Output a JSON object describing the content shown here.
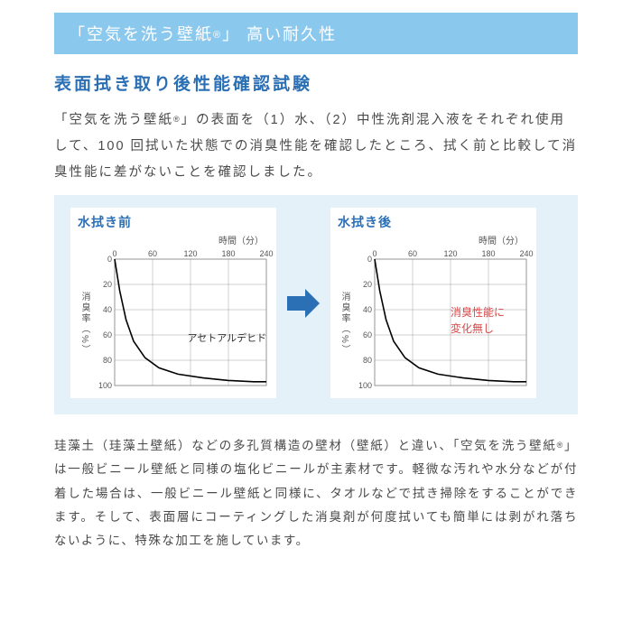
{
  "banner": {
    "prefix": "「空気を洗う壁紙",
    "reg": "®",
    "suffix": "」 高い耐久性"
  },
  "section_title": "表面拭き取り後性能確認試験",
  "intro": {
    "p1a": "「空気を洗う壁紙",
    "p1reg": "®",
    "p1b": "」の表面を（1）水、（2）中性洗剤混入液をそれぞれ使用して、100 回拭いた状態での消臭性能を確認したところ、拭く前と比較して消臭性能に差がないことを確認しました。"
  },
  "chart_before": {
    "title": "水拭き前",
    "xlabel": "時間（分）",
    "ylabel": "消臭率（%）",
    "xlim": [
      0,
      240
    ],
    "ylim_top": 0,
    "ylim_bottom": 100,
    "xticks": [
      0,
      60,
      120,
      180,
      240
    ],
    "yticks": [
      0,
      20,
      40,
      60,
      80,
      100
    ],
    "curve": [
      [
        0,
        0
      ],
      [
        8,
        25
      ],
      [
        18,
        48
      ],
      [
        30,
        65
      ],
      [
        48,
        78
      ],
      [
        70,
        86
      ],
      [
        100,
        91
      ],
      [
        140,
        94
      ],
      [
        180,
        96
      ],
      [
        220,
        97
      ],
      [
        240,
        97
      ]
    ],
    "annotation": "アセトアルデヒド",
    "annotation_color": "#333333",
    "curve_color": "#000000",
    "axis_color": "#888888",
    "grid_color": "#888888",
    "tick_fontsize": 9,
    "bg": "#ffffff"
  },
  "chart_after": {
    "title": "水拭き後",
    "xlabel": "時間（分）",
    "ylabel": "消臭率（%）",
    "xlim": [
      0,
      240
    ],
    "ylim_top": 0,
    "ylim_bottom": 100,
    "xticks": [
      0,
      60,
      120,
      180,
      240
    ],
    "yticks": [
      0,
      20,
      40,
      60,
      80,
      100
    ],
    "curve": [
      [
        0,
        0
      ],
      [
        8,
        25
      ],
      [
        18,
        48
      ],
      [
        30,
        65
      ],
      [
        48,
        78
      ],
      [
        70,
        86
      ],
      [
        100,
        91
      ],
      [
        140,
        94
      ],
      [
        180,
        96
      ],
      [
        220,
        97
      ],
      [
        240,
        97
      ]
    ],
    "annotation_l1": "消臭性能に",
    "annotation_l2": "変化無し",
    "annotation_color": "#d94a4a",
    "curve_color": "#000000",
    "axis_color": "#888888",
    "grid_color": "#888888",
    "tick_fontsize": 9,
    "bg": "#ffffff"
  },
  "arrow_color": "#2b6fb5",
  "footnote": {
    "t1": "珪藻土（珪藻土壁紙）などの多孔質構造の壁材（壁紙）と違い、「空気を洗う壁紙",
    "reg": "®",
    "t2": "」は一般ビニール壁紙と同様の塩化ビニールが主素材です。軽微な汚れや水分などが付着した場合は、一般ビニール壁紙と同様に、タオルなどで拭き掃除をすることができます。そして、表面層にコーティングした消臭剤が何度拭いても簡単には剥がれ落ちないように、特殊な加工を施しています。"
  }
}
